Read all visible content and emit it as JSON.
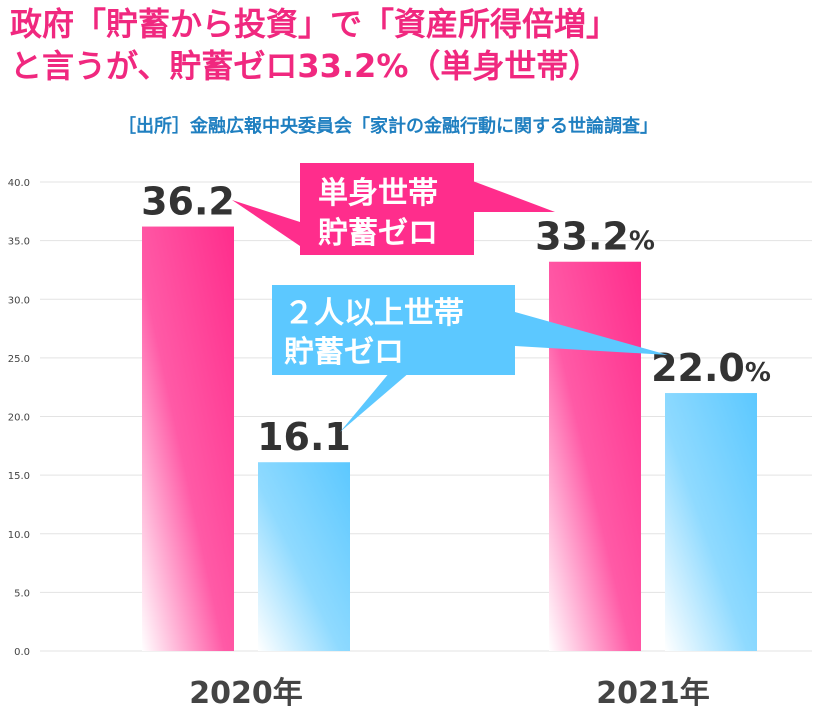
{
  "title_line1": "政府「貯蓄から投資」で「資産所得倍増」",
  "title_line2": "と言うが、貯蓄ゼロ33.2%（単身世帯）",
  "source": "［出所］金融広報中央委員会「家計の金融行動に関する世論調査」",
  "colors": {
    "title": "#f0287f",
    "source": "#1f7fc0",
    "single": "#ff2d8c",
    "multi": "#5cc8ff",
    "grid": "#e3e3e3"
  },
  "callouts": {
    "single": {
      "line1": "単身世帯",
      "line2": "貯蓄ゼロ"
    },
    "multi": {
      "line1": "２人以上世帯",
      "line2": "貯蓄ゼロ"
    }
  },
  "chart_data": {
    "type": "bar",
    "categories": [
      "2020年",
      "2021年"
    ],
    "series": [
      {
        "name": "単身世帯",
        "values": [
          36.2,
          33.2
        ],
        "labels": [
          "36.2",
          "33.2"
        ]
      },
      {
        "name": "２人以上世帯",
        "values": [
          16.1,
          22.0
        ],
        "labels": [
          "16.1",
          "22.0"
        ]
      }
    ],
    "yticks": [
      "0.0",
      "5.0",
      "10.0",
      "15.0",
      "20.0",
      "25.0",
      "30.0",
      "35.0",
      "40.0"
    ],
    "ylim": [
      0,
      40
    ],
    "percent_suffix": "%",
    "grid": true
  }
}
